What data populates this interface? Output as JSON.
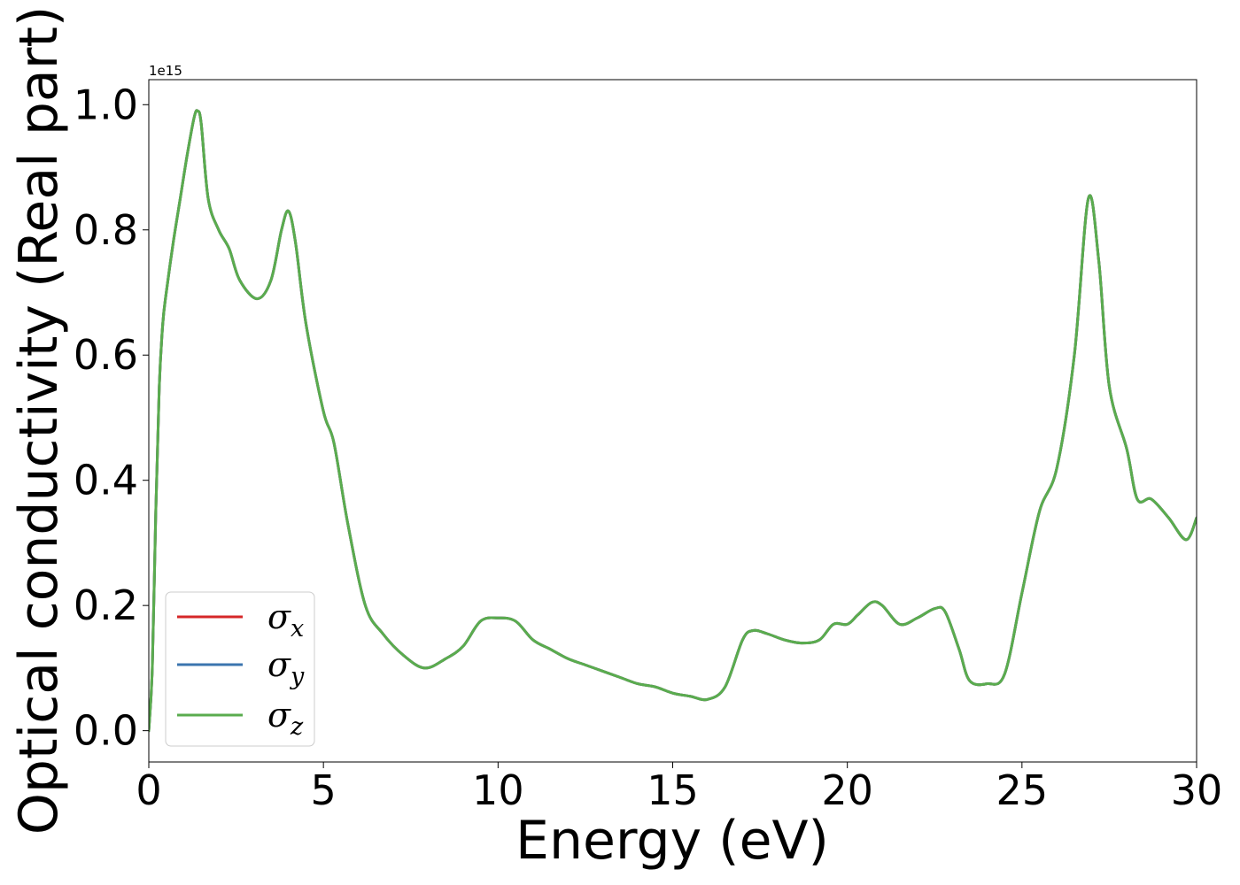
{
  "chart_data": {
    "type": "line",
    "xlabel": "Energy (eV)",
    "ylabel": "Optical conductivity (Real part)",
    "y_offset_label": "1e15",
    "y_scale_factor": 1000000000000000.0,
    "xlim": [
      0,
      30
    ],
    "ylim": [
      -0.05,
      1.04
    ],
    "x_ticks": [
      0,
      5,
      10,
      15,
      20,
      25,
      30
    ],
    "x_tick_labels": [
      "0",
      "5",
      "10",
      "15",
      "20",
      "25",
      "30"
    ],
    "y_ticks": [
      0.0,
      0.2,
      0.4,
      0.6,
      0.8,
      1.0
    ],
    "y_tick_labels": [
      "0.0",
      "0.2",
      "0.4",
      "0.6",
      "0.8",
      "1.0"
    ],
    "grid": false,
    "legend_position": "lower-left",
    "x": [
      0.0,
      0.1,
      0.2,
      0.3,
      0.4,
      0.5,
      0.7,
      0.9,
      1.1,
      1.3,
      1.4,
      1.5,
      1.7,
      2.0,
      2.3,
      2.6,
      3.1,
      3.5,
      3.8,
      4.0,
      4.2,
      4.5,
      5.0,
      5.3,
      5.7,
      6.2,
      6.7,
      7.3,
      7.9,
      8.5,
      9.0,
      9.5,
      10.0,
      10.5,
      11.0,
      11.5,
      12.0,
      12.5,
      13.0,
      13.5,
      14.0,
      14.5,
      15.0,
      15.5,
      16.0,
      16.5,
      17.0,
      17.3,
      17.7,
      18.2,
      18.7,
      19.2,
      19.6,
      20.0,
      20.3,
      20.7,
      21.0,
      21.5,
      22.0,
      22.5,
      22.8,
      23.2,
      23.5,
      24.0,
      24.5,
      25.0,
      25.5,
      26.0,
      26.5,
      26.9,
      27.2,
      27.5,
      28.0,
      28.3,
      28.7,
      29.2,
      29.7,
      30.0
    ],
    "series": [
      {
        "name": "σx",
        "color": "#d62728",
        "values": [
          0.0,
          0.1,
          0.35,
          0.55,
          0.65,
          0.7,
          0.78,
          0.85,
          0.92,
          0.98,
          0.99,
          0.97,
          0.85,
          0.8,
          0.77,
          0.72,
          0.69,
          0.72,
          0.8,
          0.83,
          0.78,
          0.65,
          0.51,
          0.46,
          0.33,
          0.2,
          0.155,
          0.12,
          0.1,
          0.115,
          0.135,
          0.175,
          0.18,
          0.175,
          0.145,
          0.13,
          0.115,
          0.105,
          0.095,
          0.085,
          0.075,
          0.07,
          0.06,
          0.055,
          0.05,
          0.07,
          0.145,
          0.16,
          0.155,
          0.145,
          0.14,
          0.145,
          0.17,
          0.17,
          0.185,
          0.205,
          0.2,
          0.17,
          0.18,
          0.195,
          0.19,
          0.13,
          0.08,
          0.075,
          0.09,
          0.22,
          0.35,
          0.42,
          0.6,
          0.85,
          0.75,
          0.55,
          0.45,
          0.37,
          0.37,
          0.34,
          0.305,
          0.34
        ]
      },
      {
        "name": "σy",
        "color": "#3b75af",
        "values": [
          0.0,
          0.1,
          0.35,
          0.55,
          0.65,
          0.7,
          0.78,
          0.85,
          0.92,
          0.98,
          0.99,
          0.97,
          0.85,
          0.8,
          0.77,
          0.72,
          0.69,
          0.72,
          0.8,
          0.83,
          0.78,
          0.65,
          0.51,
          0.46,
          0.33,
          0.2,
          0.155,
          0.12,
          0.1,
          0.115,
          0.135,
          0.175,
          0.18,
          0.175,
          0.145,
          0.13,
          0.115,
          0.105,
          0.095,
          0.085,
          0.075,
          0.07,
          0.06,
          0.055,
          0.05,
          0.07,
          0.145,
          0.16,
          0.155,
          0.145,
          0.14,
          0.145,
          0.17,
          0.17,
          0.185,
          0.205,
          0.2,
          0.17,
          0.18,
          0.195,
          0.19,
          0.13,
          0.08,
          0.075,
          0.09,
          0.22,
          0.35,
          0.42,
          0.6,
          0.85,
          0.75,
          0.55,
          0.45,
          0.37,
          0.37,
          0.34,
          0.305,
          0.34
        ]
      },
      {
        "name": "σz",
        "color": "#5aac4e",
        "values": [
          0.0,
          0.1,
          0.35,
          0.55,
          0.65,
          0.7,
          0.78,
          0.85,
          0.92,
          0.98,
          0.99,
          0.97,
          0.85,
          0.8,
          0.77,
          0.72,
          0.69,
          0.72,
          0.8,
          0.83,
          0.78,
          0.65,
          0.51,
          0.46,
          0.33,
          0.2,
          0.155,
          0.12,
          0.1,
          0.115,
          0.135,
          0.175,
          0.18,
          0.175,
          0.145,
          0.13,
          0.115,
          0.105,
          0.095,
          0.085,
          0.075,
          0.07,
          0.06,
          0.055,
          0.05,
          0.07,
          0.145,
          0.16,
          0.155,
          0.145,
          0.14,
          0.145,
          0.17,
          0.17,
          0.185,
          0.205,
          0.2,
          0.17,
          0.18,
          0.195,
          0.19,
          0.13,
          0.08,
          0.075,
          0.09,
          0.22,
          0.35,
          0.42,
          0.6,
          0.85,
          0.75,
          0.55,
          0.45,
          0.37,
          0.37,
          0.34,
          0.305,
          0.34
        ]
      }
    ],
    "legend": {
      "entries": [
        {
          "symbol": "σ",
          "subscript": "x",
          "color": "#d62728"
        },
        {
          "symbol": "σ",
          "subscript": "y",
          "color": "#3b75af"
        },
        {
          "symbol": "σ",
          "subscript": "z",
          "color": "#5aac4e"
        }
      ]
    }
  }
}
